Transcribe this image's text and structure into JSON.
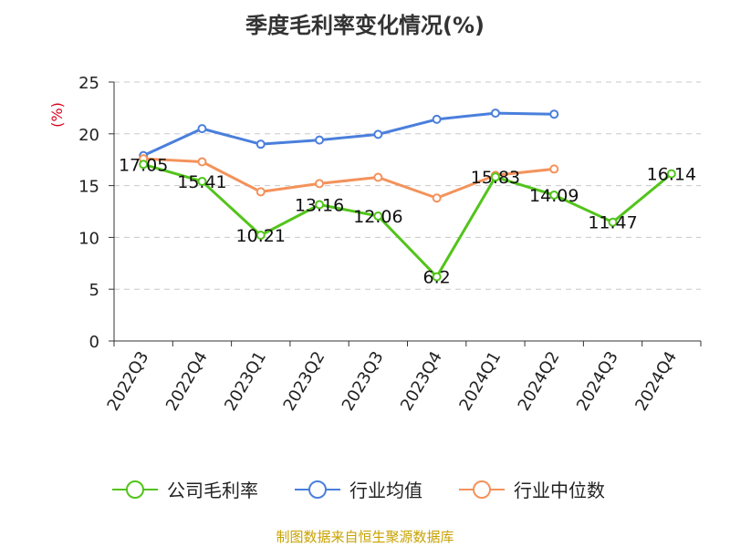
{
  "title": "季度毛利率变化情况(%)",
  "source": "制图数据来自恒生聚源数据库",
  "chart_data": {
    "type": "line",
    "title": "季度毛利率变化情况(%)",
    "ylabel": "(%)",
    "xlabel": "",
    "ylim": [
      0,
      25
    ],
    "yticks": [
      0,
      5,
      10,
      15,
      20,
      25
    ],
    "grid": true,
    "legend_position": "bottom",
    "categories": [
      "2022Q3",
      "2022Q4",
      "2023Q1",
      "2023Q2",
      "2023Q3",
      "2023Q4",
      "2024Q1",
      "2024Q2",
      "2024Q3",
      "2024Q4"
    ],
    "series": [
      {
        "name": "公司毛利率",
        "color": "#52c41a",
        "labels": true,
        "values": [
          17.05,
          15.41,
          10.21,
          13.16,
          12.06,
          6.2,
          15.83,
          14.09,
          11.47,
          16.14
        ]
      },
      {
        "name": "行业均值",
        "color": "#4a7fdc",
        "labels": false,
        "values": [
          17.9,
          20.5,
          19.0,
          19.4,
          19.95,
          21.4,
          22.0,
          21.9,
          null,
          null
        ]
      },
      {
        "name": "行业中位数",
        "color": "#f4925a",
        "labels": false,
        "values": [
          17.6,
          17.3,
          14.4,
          15.2,
          15.8,
          13.8,
          16.0,
          16.6,
          null,
          null
        ]
      }
    ]
  }
}
